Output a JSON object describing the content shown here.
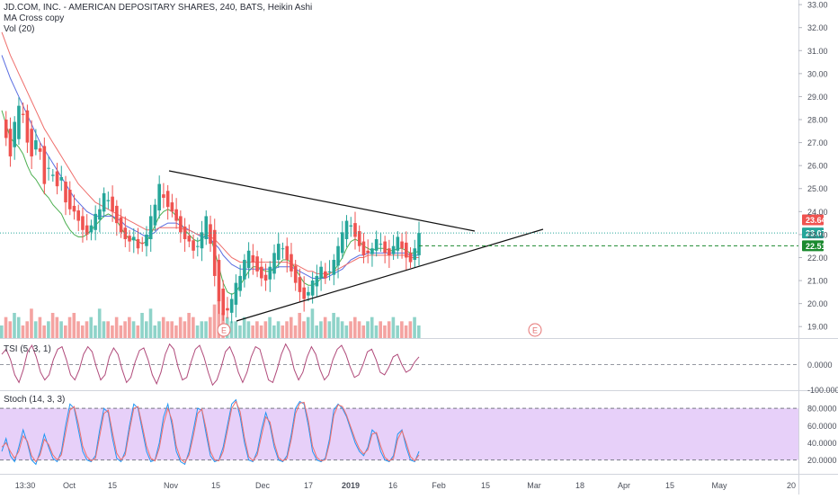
{
  "header": {
    "symbol_title": "JD.COM, INC. - AMERICAN DEPOSITARY SHARES, 240, BATS, Heikin Ashi",
    "indicator_1": "MA Cross copy",
    "indicator_2": "Vol (20)"
  },
  "colors": {
    "up": "#26a69a",
    "down": "#ef5350",
    "vol_up": "#8fd3c9",
    "vol_down": "#f4a3a1",
    "ma_fast": "#4caf50",
    "ma_mid": "#5b6ee1",
    "ma_slow": "#ef6f6c",
    "tsi": "#b04a7a",
    "stoch_k": "#2196f3",
    "stoch_d": "#ef6f6c",
    "stoch_band": "#e1c4f7",
    "current_price": "#26a69a",
    "trendline": "#111111"
  },
  "chart_data": [
    {
      "type": "line",
      "name": "price",
      "title": "JD.COM, INC. - AMERICAN DEPOSITARY SHARES, 240, BATS, Heikin Ashi",
      "ylim": [
        18.5,
        33.2
      ],
      "y_ticks": [
        "33.00",
        "32.00",
        "31.00",
        "30.00",
        "29.00",
        "28.00",
        "27.00",
        "26.00",
        "25.00",
        "24.00",
        "23.00",
        "22.00",
        "21.00",
        "20.00",
        "19.00"
      ],
      "x_ticks": [
        "13:30",
        "Oct",
        "15",
        "Nov",
        "15",
        "Dec",
        "17",
        "2019",
        "16",
        "Feb",
        "15",
        "Mar",
        "18",
        "Apr",
        "15",
        "May",
        "20"
      ],
      "price_series": [
        28.0,
        27.2,
        26.4,
        27.9,
        28.6,
        28.2,
        27.0,
        26.4,
        27.1,
        26.6,
        25.2,
        25.9,
        25.6,
        25.1,
        25.5,
        24.4,
        24.1,
        24.0,
        23.6,
        23.2,
        23.0,
        23.4,
        23.9,
        24.1,
        24.8,
        24.5,
        24.0,
        23.5,
        23.1,
        22.8,
        22.7,
        22.9,
        22.4,
        22.6,
        23.0,
        23.8,
        24.3,
        25.2,
        24.6,
        24.2,
        24.0,
        23.6,
        23.1,
        22.8,
        22.7,
        22.3,
        22.5,
        23.1,
        23.8,
        22.6,
        21.2,
        20.1,
        19.5,
        19.7,
        20.2,
        20.9,
        21.2,
        21.9,
        22.3,
        21.8,
        21.4,
        21.1,
        21.0,
        21.6,
        22.2,
        22.6,
        22.4,
        21.9,
        21.4,
        20.9,
        20.5,
        20.2,
        20.5,
        21.0,
        21.2,
        21.6,
        21.1,
        21.4,
        21.9,
        22.5,
        23.1,
        23.6,
        23.4,
        22.9,
        22.5,
        22.1,
        22.2,
        22.4,
        22.8,
        22.6,
        22.2,
        22.1,
        22.5,
        22.9,
        22.4,
        22.0,
        21.8,
        22.4,
        23.07
      ],
      "moving_averages": [
        {
          "values": [
            28.4,
            27.8,
            27.2,
            27.0,
            26.8,
            26.5,
            26.0,
            25.6,
            25.4,
            25.1,
            24.8,
            24.6,
            24.3,
            24.1,
            23.9,
            23.5,
            23.2,
            23.0,
            22.9,
            22.9,
            23.0,
            23.2,
            23.4,
            23.6,
            23.8,
            23.9,
            23.8,
            23.6,
            23.3,
            23.0,
            22.8,
            22.8,
            22.7,
            22.6,
            22.7,
            23.0,
            23.4,
            23.8,
            24.0,
            24.1,
            24.0,
            23.8,
            23.5,
            23.2,
            23.0,
            22.8,
            22.7,
            22.8,
            23.0,
            22.9,
            22.3,
            21.6,
            20.9,
            20.5,
            20.4,
            20.5,
            20.8,
            21.1,
            21.4,
            21.6,
            21.6,
            21.5,
            21.4,
            21.4,
            21.5,
            21.7,
            21.9,
            21.9,
            21.8,
            21.5,
            21.2,
            20.9,
            20.8,
            20.8,
            20.9,
            21.1,
            21.2,
            21.3,
            21.4,
            21.7,
            22.0,
            22.4,
            22.7,
            22.8,
            22.7,
            22.5,
            22.4,
            22.3,
            22.4,
            22.4,
            22.4,
            22.3,
            22.3,
            22.4,
            22.4,
            22.3,
            22.2,
            22.2,
            22.3
          ]
        },
        {
          "values": [
            30.8,
            30.3,
            29.8,
            29.4,
            29.0,
            28.6,
            28.2,
            27.8,
            27.4,
            27.0,
            26.7,
            26.4,
            26.1,
            25.8,
            25.5,
            25.2,
            24.9,
            24.6,
            24.4,
            24.2,
            24.0,
            23.9,
            23.8,
            23.8,
            23.8,
            23.8,
            23.8,
            23.7,
            23.6,
            23.4,
            23.3,
            23.2,
            23.1,
            23.0,
            22.9,
            23.0,
            23.1,
            23.3,
            23.4,
            23.5,
            23.5,
            23.5,
            23.4,
            23.3,
            23.2,
            23.1,
            23.0,
            22.9,
            22.9,
            22.8,
            22.6,
            22.4,
            22.1,
            21.9,
            21.7,
            21.6,
            21.5,
            21.5,
            21.5,
            21.5,
            21.5,
            21.5,
            21.5,
            21.5,
            21.5,
            21.6,
            21.6,
            21.6,
            21.6,
            21.5,
            21.4,
            21.3,
            21.2,
            21.1,
            21.1,
            21.1,
            21.1,
            21.2,
            21.3,
            21.4,
            21.5,
            21.7,
            21.9,
            22.0,
            22.1,
            22.1,
            22.2,
            22.2,
            22.2,
            22.2,
            22.2,
            22.2,
            22.2,
            22.2,
            22.2,
            22.2,
            22.1,
            22.1,
            22.1
          ]
        },
        {
          "values": [
            31.8,
            31.3,
            30.8,
            30.4,
            30.0,
            29.6,
            29.2,
            28.8,
            28.4,
            28.0,
            27.6,
            27.3,
            27.0,
            26.7,
            26.4,
            26.1,
            25.8,
            25.5,
            25.2,
            25.0,
            24.8,
            24.6,
            24.4,
            24.3,
            24.2,
            24.1,
            24.0,
            23.9,
            23.8,
            23.7,
            23.6,
            23.5,
            23.4,
            23.3,
            23.2,
            23.2,
            23.2,
            23.3,
            23.3,
            23.3,
            23.3,
            23.3,
            23.3,
            23.2,
            23.2,
            23.1,
            23.0,
            23.0,
            23.0,
            22.9,
            22.8,
            22.6,
            22.4,
            22.2,
            22.0,
            21.9,
            21.8,
            21.8,
            21.8,
            21.8,
            21.8,
            21.8,
            21.8,
            21.8,
            21.8,
            21.8,
            21.8,
            21.8,
            21.7,
            21.7,
            21.6,
            21.5,
            21.4,
            21.4,
            21.3,
            21.3,
            21.3,
            21.3,
            21.4,
            21.5,
            21.6,
            21.7,
            21.8,
            21.9,
            22.0,
            22.0,
            22.1,
            22.1,
            22.1,
            22.1,
            22.1,
            22.1,
            22.1,
            22.1,
            22.1,
            22.1,
            22.0,
            22.0,
            22.0
          ]
        }
      ],
      "current_price": "23.07",
      "price_labels": [
        {
          "text": "23.64",
          "value": 23.64,
          "color": "#ef5350"
        },
        {
          "text": "23.07",
          "value": 23.07,
          "color": "#26a69a"
        },
        {
          "text": "22.51",
          "value": 22.51,
          "color": "#1b8a2f"
        }
      ],
      "earnings_markers": [
        "E",
        "E"
      ],
      "volume": [
        3,
        5,
        4,
        6,
        5,
        3,
        4,
        7,
        4,
        5,
        3,
        4,
        6,
        5,
        4,
        3,
        5,
        6,
        4,
        3,
        4,
        5,
        3,
        7,
        4,
        4,
        3,
        5,
        3,
        4,
        5,
        4,
        3,
        6,
        4,
        7,
        3,
        4,
        5,
        4,
        4,
        3,
        5,
        4,
        6,
        5,
        3,
        4,
        4,
        5,
        8,
        9,
        6,
        5,
        4,
        4,
        3,
        5,
        4,
        3,
        4,
        3,
        4,
        5,
        3,
        4,
        3,
        4,
        5,
        3,
        6,
        4,
        5,
        7,
        3,
        4,
        5,
        4,
        6,
        5,
        4,
        3,
        4,
        5,
        4,
        3,
        4,
        5,
        3,
        4,
        3,
        4,
        5,
        3,
        4,
        3,
        4,
        5,
        3
      ]
    },
    {
      "type": "line",
      "name": "TSI",
      "title": "TSI (5, 3, 1)",
      "ylim": [
        -100,
        100
      ],
      "y_ticks": [
        "0.0000",
        "-100.0000"
      ],
      "values": [
        40,
        60,
        20,
        -40,
        -70,
        -20,
        50,
        75,
        30,
        -30,
        -60,
        -40,
        20,
        60,
        70,
        20,
        -40,
        -60,
        -20,
        40,
        70,
        50,
        -10,
        -60,
        -40,
        30,
        65,
        40,
        -20,
        -70,
        -50,
        10,
        55,
        65,
        20,
        -40,
        -75,
        -30,
        40,
        80,
        60,
        -10,
        -60,
        -50,
        10,
        60,
        75,
        30,
        -30,
        -80,
        -60,
        -10,
        50,
        70,
        30,
        -30,
        -70,
        -30,
        30,
        70,
        60,
        0,
        -60,
        -70,
        -20,
        40,
        80,
        50,
        -20,
        -60,
        -30,
        30,
        70,
        40,
        -20,
        -60,
        -40,
        20,
        60,
        75,
        40,
        -10,
        -50,
        -40,
        0,
        50,
        60,
        20,
        -30,
        -40,
        -10,
        30,
        40,
        0,
        -30,
        -20,
        10,
        30
      ]
    },
    {
      "type": "line",
      "name": "Stoch",
      "title": "Stoch (14, 3, 3)",
      "ylim": [
        5,
        100
      ],
      "y_ticks": [
        "80.0000",
        "60.0000",
        "40.0000",
        "20.0000"
      ],
      "series": [
        {
          "values": [
            30,
            45,
            25,
            18,
            35,
            55,
            40,
            20,
            15,
            30,
            50,
            35,
            22,
            18,
            30,
            60,
            85,
            80,
            55,
            30,
            20,
            18,
            25,
            55,
            80,
            75,
            45,
            22,
            18,
            30,
            60,
            85,
            80,
            55,
            30,
            18,
            20,
            40,
            70,
            85,
            60,
            30,
            18,
            15,
            30,
            55,
            80,
            78,
            50,
            25,
            18,
            20,
            35,
            60,
            85,
            90,
            70,
            40,
            20,
            18,
            30,
            55,
            75,
            60,
            35,
            20,
            18,
            25,
            50,
            80,
            88,
            85,
            60,
            30,
            20,
            18,
            22,
            45,
            78,
            85,
            80,
            70,
            55,
            40,
            30,
            25,
            35,
            55,
            50,
            30,
            20,
            18,
            25,
            50,
            55,
            35,
            20,
            18,
            30
          ]
        },
        {
          "values": [
            35,
            40,
            30,
            22,
            30,
            48,
            42,
            25,
            18,
            26,
            44,
            38,
            26,
            20,
            26,
            52,
            78,
            82,
            62,
            36,
            24,
            19,
            22,
            48,
            74,
            78,
            52,
            28,
            20,
            26,
            54,
            80,
            82,
            60,
            36,
            22,
            19,
            34,
            62,
            80,
            66,
            36,
            21,
            17,
            26,
            48,
            74,
            79,
            56,
            30,
            20,
            19,
            30,
            54,
            80,
            88,
            76,
            46,
            24,
            19,
            26,
            48,
            70,
            64,
            40,
            23,
            19,
            22,
            44,
            74,
            86,
            87,
            66,
            36,
            23,
            19,
            20,
            40,
            72,
            84,
            82,
            72,
            58,
            44,
            33,
            27,
            32,
            50,
            52,
            36,
            23,
            19,
            22,
            44,
            54,
            40,
            24,
            19,
            26
          ]
        }
      ]
    }
  ]
}
